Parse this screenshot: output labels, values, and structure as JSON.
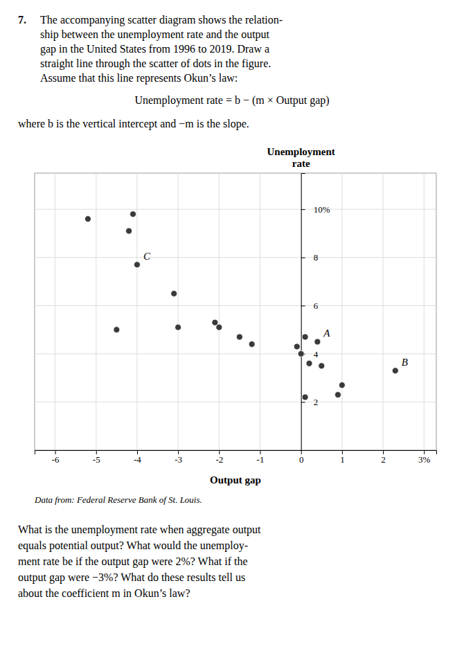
{
  "chart_data": {
    "type": "scatter",
    "title": "7.",
    "annotations": {
      "intro": [
        "The accompanying scatter diagram shows the relation-",
        "ship between the unemployment rate and the output",
        "gap in the United States from 1996 to 2019. Draw a",
        "straight line through the scatter of dots in the figure.",
        "Assume that this line represents Okun’s law:"
      ],
      "equation": "Unemployment rate = b − (m × Output gap)",
      "note": "where b is the vertical intercept and −m is the slope.",
      "caption": "Data from: Federal Reserve Bank of St. Louis.",
      "questions": [
        "What is the unemployment rate when aggregate output",
        "equals potential output? What would the unemploy-",
        "ment rate be if the output gap were 2%? What if the",
        "output gap were −3%? What do these results tell us",
        "about the coefficient m in Okun’s law?"
      ]
    },
    "x_label": "Output gap",
    "y_label": "Unemployment\nrate",
    "x": [
      -5.2,
      -4.1,
      -4.2,
      -4.0,
      -3.1,
      -4.5,
      -3.0,
      -2.1,
      -2.0,
      -1.5,
      -1.2,
      -0.1,
      0.0,
      0.1,
      0.4,
      0.2,
      0.5,
      1.0,
      0.1,
      0.9,
      2.3
    ],
    "values": [
      9.6,
      9.8,
      9.1,
      7.7,
      6.5,
      5.0,
      5.1,
      5.3,
      5.1,
      4.7,
      4.4,
      4.3,
      4.0,
      4.7,
      4.5,
      3.6,
      3.5,
      2.7,
      2.2,
      2.3,
      3.3
    ],
    "point_labels": [
      {
        "label": "A",
        "x": 0.4,
        "y": 4.5
      },
      {
        "label": "B",
        "x": 2.3,
        "y": 3.3
      },
      {
        "label": "C",
        "x": -4.0,
        "y": 7.7
      }
    ],
    "color": "#3a3a3a",
    "xlim": [
      -6.5,
      3.3
    ],
    "ylim": [
      0,
      11.5
    ],
    "xticks": [
      -6,
      -5,
      -4,
      -3,
      -2,
      -1,
      0,
      1,
      2,
      {
        "value": 3,
        "label": "3%"
      }
    ],
    "yticks": [
      2,
      4,
      6,
      8,
      {
        "value": 10,
        "label": "10%"
      }
    ],
    "grid": true
  }
}
